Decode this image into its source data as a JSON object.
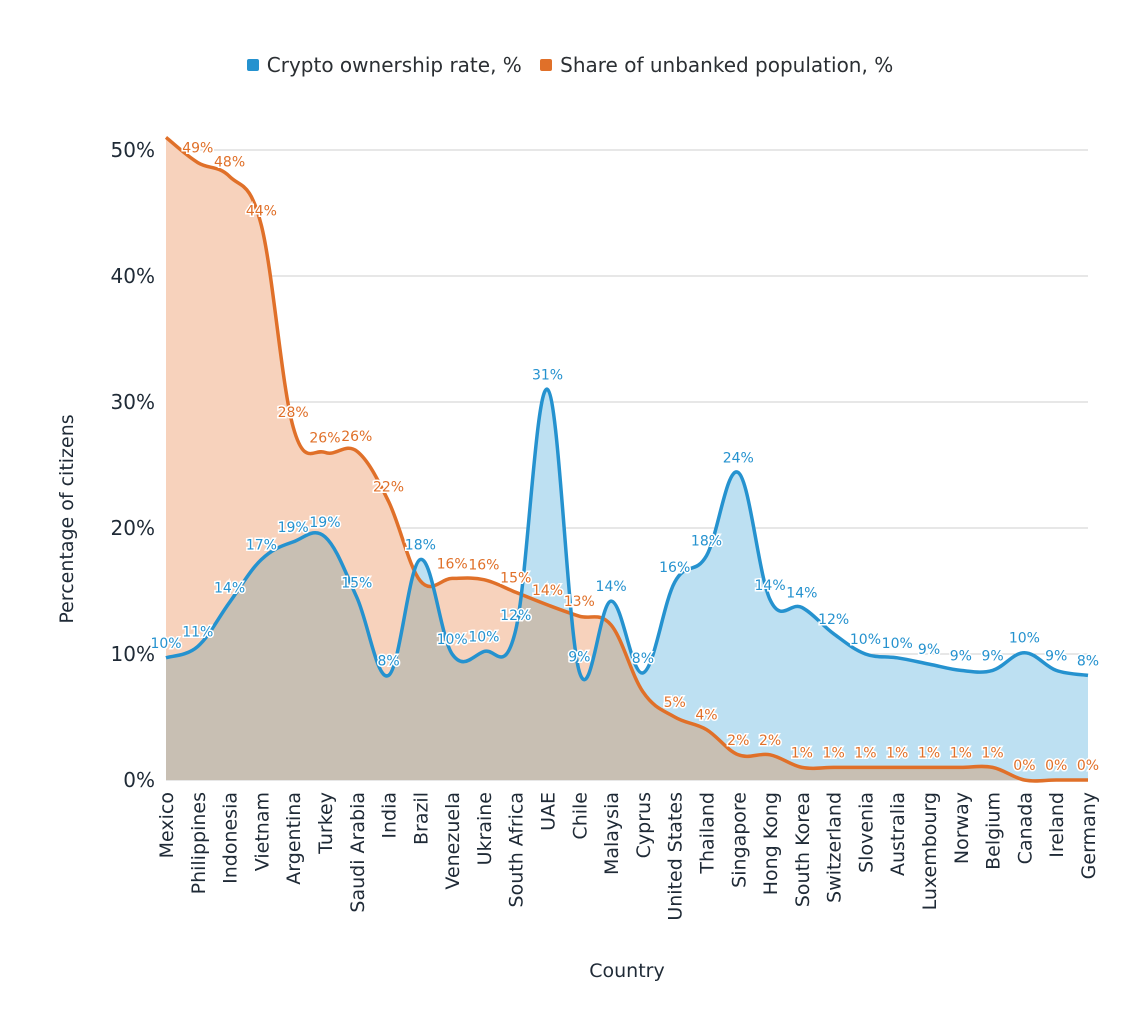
{
  "legend": {
    "series1_label": "Crypto ownership rate, %",
    "series2_label": "Share of unbanked population, %"
  },
  "colors": {
    "crypto_line": "#2592cf",
    "crypto_fill": "#bde0f2",
    "unbanked_line": "#e07029",
    "unbanked_fill": "#f7d2bc",
    "overlap_fill": "#c8bfb3",
    "grid": "#cfcfcf",
    "axis_text": "#1f2a36"
  },
  "chart_data": {
    "type": "area",
    "xlabel": "Country",
    "ylabel": "Percentage of citizens",
    "ylim": [
      0,
      50
    ],
    "yticks": [
      "0%",
      "10%",
      "20%",
      "30%",
      "40%",
      "50%"
    ],
    "grid": true,
    "legend_position": "top-center",
    "categories": [
      "Mexico",
      "Philippines",
      "Indonesia",
      "Vietnam",
      "Argentina",
      "Turkey",
      "Saudi Arabia",
      "India",
      "Brazil",
      "Venezuela",
      "Ukraine",
      "South Africa",
      "UAE",
      "Chile",
      "Malaysia",
      "Cyprus",
      "United States",
      "Thailand",
      "Singapore",
      "Hong Kong",
      "South Korea",
      "Switzerland",
      "Slovenia",
      "Australia",
      "Luxembourg",
      "Norway",
      "Belgium",
      "Canada",
      "Ireland",
      "Germany"
    ],
    "series": [
      {
        "name": "Crypto ownership rate, %",
        "values": [
          9.7,
          10.6,
          14.1,
          17.5,
          18.9,
          19.3,
          14.5,
          8.3,
          17.5,
          10.0,
          10.2,
          11.9,
          31.0,
          8.6,
          14.2,
          8.5,
          15.7,
          17.8,
          24.4,
          14.3,
          13.7,
          11.6,
          10.0,
          9.7,
          9.2,
          8.7,
          8.7,
          10.1,
          8.7,
          8.3
        ],
        "labels": [
          "10%",
          "11%",
          "14%",
          "17%",
          "19%",
          "19%",
          "15%",
          "8%",
          "18%",
          "10%",
          "10%",
          "12%",
          "31%",
          "9%",
          "14%",
          "8%",
          "16%",
          "18%",
          "24%",
          "14%",
          "14%",
          "12%",
          "10%",
          "10%",
          "9%",
          "9%",
          "9%",
          "10%",
          "9%",
          "8%"
        ]
      },
      {
        "name": "Share of unbanked population, %",
        "values": [
          51.0,
          49.0,
          47.9,
          44.0,
          28.0,
          26.0,
          26.1,
          22.1,
          15.8,
          16.0,
          15.9,
          14.9,
          13.9,
          13.0,
          12.3,
          7.0,
          5.0,
          4.0,
          2.0,
          2.0,
          1.0,
          1.0,
          1.0,
          1.0,
          1.0,
          1.0,
          1.0,
          0.0,
          0.0,
          0.0
        ],
        "labels": [
          "",
          "49%",
          "48%",
          "44%",
          "28%",
          "26%",
          "26%",
          "22%",
          "",
          "16%",
          "16%",
          "15%",
          "14%",
          "13%",
          "",
          "",
          "5%",
          "4%",
          "2%",
          "2%",
          "1%",
          "1%",
          "1%",
          "1%",
          "1%",
          "1%",
          "1%",
          "0%",
          "0%",
          "0%"
        ]
      }
    ]
  }
}
